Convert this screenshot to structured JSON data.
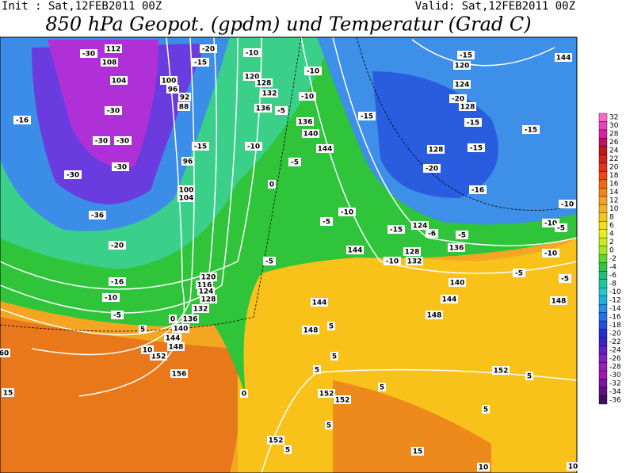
{
  "header": {
    "init": "Init : Sat,12FEB2011 00Z",
    "valid": "Valid: Sat,12FEB2011 00Z",
    "title": "850 hPa Geopot. (gpdm) und Temperatur (Grad C)"
  },
  "map": {
    "contour_labels": [
      "112",
      "108",
      "104",
      "100",
      "96",
      "92",
      "88",
      "-30",
      "-30",
      "-16",
      "-30",
      "-30",
      "-30",
      "-30",
      "-36",
      "-20",
      "-16",
      "-10",
      "-5",
      "-15",
      "-20",
      "-10",
      "120",
      "128",
      "132",
      "136",
      "-10",
      "-10",
      "136",
      "140",
      "144",
      "-5",
      "-10",
      "-5",
      "-15",
      "96",
      "100",
      "104",
      "0",
      "-5",
      "-10",
      "-15",
      "-15",
      "120",
      "124",
      "-20",
      "128",
      "-15",
      "-15",
      "128",
      "-20",
      "-16",
      "144",
      "-15",
      "-10",
      "-10",
      "-5",
      "-10",
      "-5",
      "-5",
      "124",
      "-6",
      "-5",
      "-15",
      "144",
      "-10",
      "128",
      "132",
      "136",
      "140",
      "144",
      "148",
      "148",
      "-5",
      "144",
      "148",
      "5",
      "5",
      "120",
      "116",
      "124",
      "128",
      "132",
      "136",
      "140",
      "144",
      "148",
      "152",
      "156",
      "0",
      "5",
      "10",
      "15",
      "0",
      "5",
      "152",
      "152",
      "5",
      "5",
      "152",
      "5",
      "5",
      "152",
      "5",
      "15",
      "10",
      "10",
      "60"
    ]
  },
  "legend": {
    "ticks": [
      32,
      30,
      28,
      26,
      24,
      22,
      20,
      18,
      16,
      14,
      12,
      10,
      8,
      6,
      4,
      2,
      0,
      -2,
      -4,
      -6,
      -8,
      -10,
      -12,
      -14,
      -16,
      -18,
      -20,
      -22,
      -24,
      -26,
      -28,
      -30,
      -32,
      -34,
      -36
    ],
    "colors": [
      "#ff66cc",
      "#f040c0",
      "#e020a0",
      "#c01060",
      "#c01818",
      "#d82020",
      "#e83018",
      "#f04a10",
      "#f26a10",
      "#f28418",
      "#f4a020",
      "#f6b420",
      "#f8c818",
      "#f8dc18",
      "#e8ee20",
      "#c8ee20",
      "#a0e820",
      "#60d830",
      "#30c840",
      "#20c070",
      "#20c8a0",
      "#20c8c8",
      "#20b0e0",
      "#2090f0",
      "#2070f0",
      "#2050e0",
      "#2030d0",
      "#4020c8",
      "#6020c0",
      "#8020c0",
      "#9820b8",
      "#a018b0",
      "#8010a0",
      "#601080",
      "#401060"
    ]
  }
}
